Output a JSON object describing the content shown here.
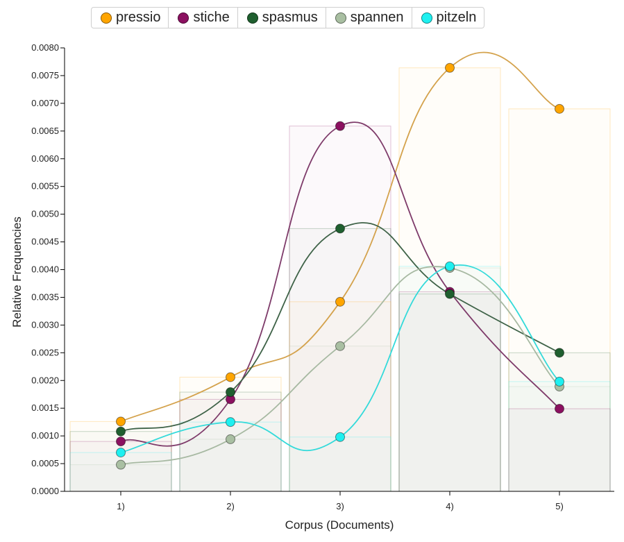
{
  "chart_data": {
    "type": "line",
    "xlabel": "Corpus (Documents)",
    "ylabel": "Relative Frequencies",
    "categories": [
      "1)",
      "2)",
      "3)",
      "4)",
      "5)"
    ],
    "ylim": [
      0,
      0.008
    ],
    "yticks": [
      "0.0000",
      "0.0005",
      "0.0010",
      "0.0015",
      "0.0020",
      "0.0025",
      "0.0030",
      "0.0035",
      "0.0040",
      "0.0045",
      "0.0050",
      "0.0055",
      "0.0060",
      "0.0065",
      "0.0070",
      "0.0075",
      "0.0080"
    ],
    "legend_position": "top-center",
    "grid": false,
    "series": [
      {
        "name": "pressio",
        "color": "#FFA500",
        "line": "#D4A24C",
        "values": [
          0.00126,
          0.00206,
          0.00342,
          0.00764,
          0.0069
        ]
      },
      {
        "name": "stiche",
        "color": "#8B1060",
        "line": "#7E3B6A",
        "values": [
          0.0009,
          0.00166,
          0.00659,
          0.0036,
          0.00149
        ]
      },
      {
        "name": "spasmus",
        "color": "#1F5F2F",
        "line": "#3E6247",
        "values": [
          0.00108,
          0.00179,
          0.00474,
          0.00356,
          0.0025
        ]
      },
      {
        "name": "spannen",
        "color": "#A9BFA2",
        "line": "#A7B9A2",
        "values": [
          0.00048,
          0.00094,
          0.00262,
          0.00403,
          0.00189
        ]
      },
      {
        "name": "pitzeln",
        "color": "#1EF0F0",
        "line": "#33DADA",
        "values": [
          0.0007,
          0.00125,
          0.00098,
          0.00406,
          0.00198
        ]
      }
    ]
  }
}
